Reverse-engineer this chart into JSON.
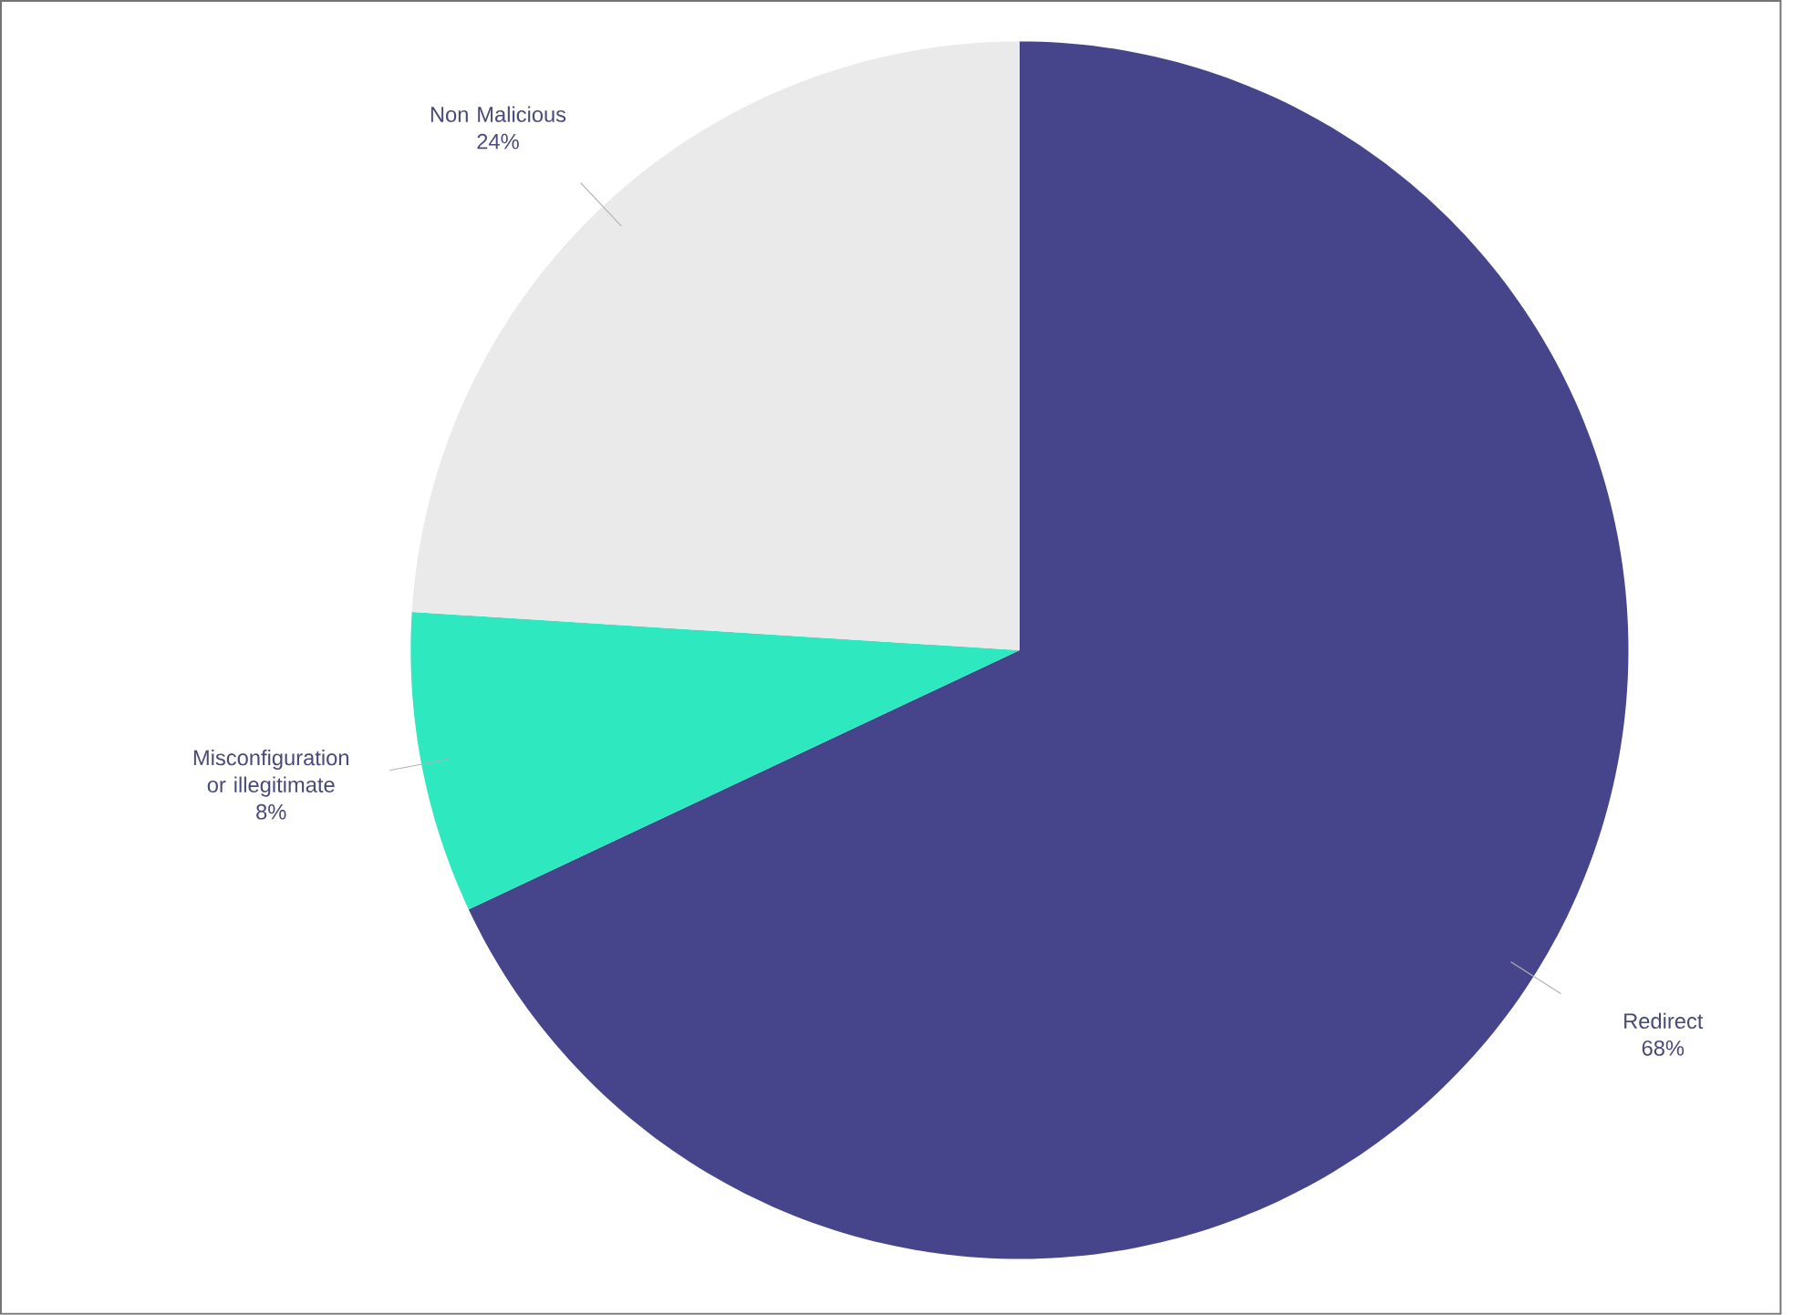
{
  "chart_data": {
    "type": "pie",
    "categories": [
      "Redirect",
      "Misconfiguration or illegitimate",
      "Non Malicious"
    ],
    "values": [
      68,
      8,
      24
    ],
    "value_labels": [
      "68%",
      "8%",
      "24%"
    ],
    "colors": [
      "#46458c",
      "#2ee8c0",
      "#eaeaea"
    ]
  }
}
